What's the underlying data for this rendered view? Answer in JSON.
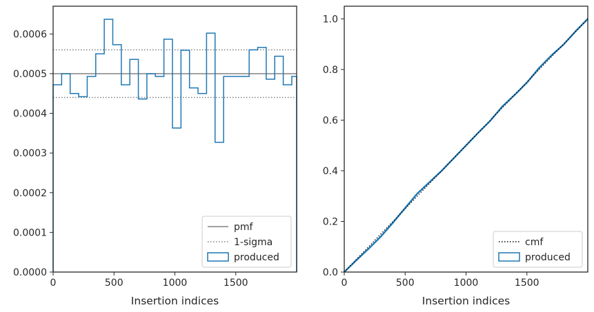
{
  "chart_data": [
    {
      "type": "line",
      "xlabel": "Insertion indices",
      "ylabel": "",
      "xlim": [
        0,
        2000
      ],
      "ylim": [
        0,
        0.00067
      ],
      "xticks": [
        0,
        500,
        1000,
        1500
      ],
      "xtick_labels": [
        "0",
        "500",
        "1000",
        "1500"
      ],
      "yticks": [
        0,
        0.0001,
        0.0002,
        0.0003,
        0.0004,
        0.0005,
        0.0006
      ],
      "ytick_labels": [
        "0.0000",
        "0.0001",
        "0.0002",
        "0.0003",
        "0.0004",
        "0.0005",
        "0.0006"
      ],
      "grid": false,
      "legend_position": "lower right",
      "reference_lines": {
        "pmf": 0.0005,
        "sigma_upper": 0.00056,
        "sigma_lower": 0.00044
      },
      "histogram": {
        "bin_edges": [
          0,
          70,
          140,
          210,
          280,
          350,
          420,
          490,
          560,
          630,
          700,
          770,
          840,
          910,
          980,
          1050,
          1120,
          1190,
          1260,
          1330,
          1400,
          1470,
          1540,
          1610,
          1680,
          1750,
          1820,
          1890,
          1960,
          2000
        ],
        "values": [
          0.000472,
          0.0005,
          0.00045,
          0.000442,
          0.000493,
          0.00055,
          0.000637,
          0.000573,
          0.000472,
          0.000536,
          0.000436,
          0.0005,
          0.000493,
          0.000587,
          0.000363,
          0.000559,
          0.000464,
          0.00045,
          0.000602,
          0.000327,
          0.000493,
          0.000493,
          0.000493,
          0.00056,
          0.000566,
          0.000486,
          0.000544,
          0.000472,
          0.000493
        ]
      },
      "series": [
        {
          "name": "pmf",
          "color": "#808080",
          "style": "solid"
        },
        {
          "name": "1-sigma",
          "color": "#808080",
          "style": "dotted"
        },
        {
          "name": "produced",
          "color": "#1f77b4",
          "style": "step"
        }
      ]
    },
    {
      "type": "line",
      "xlabel": "Insertion indices",
      "ylabel": "",
      "xlim": [
        0,
        2000
      ],
      "ylim": [
        0,
        1.05
      ],
      "xticks": [
        0,
        500,
        1000,
        1500
      ],
      "xtick_labels": [
        "0",
        "500",
        "1000",
        "1500"
      ],
      "yticks": [
        0,
        0.2,
        0.4,
        0.6,
        0.8,
        1.0
      ],
      "ytick_labels": [
        "0.0",
        "0.2",
        "0.4",
        "0.6",
        "0.8",
        "1.0"
      ],
      "grid": false,
      "legend_position": "lower right",
      "series": [
        {
          "name": "cmf",
          "color": "#000000",
          "style": "dotted",
          "x": [
            0,
            2000
          ],
          "y": [
            0,
            1.0
          ]
        },
        {
          "name": "produced",
          "color": "#1f77b4",
          "style": "solid",
          "x": [
            0,
            100,
            200,
            300,
            400,
            500,
            600,
            700,
            800,
            900,
            1000,
            1100,
            1200,
            1300,
            1400,
            1500,
            1600,
            1700,
            1800,
            1900,
            2000
          ],
          "y": [
            0,
            0.047,
            0.092,
            0.14,
            0.195,
            0.253,
            0.31,
            0.355,
            0.4,
            0.45,
            0.5,
            0.55,
            0.598,
            0.655,
            0.7,
            0.748,
            0.806,
            0.855,
            0.898,
            0.951,
            1.0
          ]
        }
      ]
    }
  ]
}
